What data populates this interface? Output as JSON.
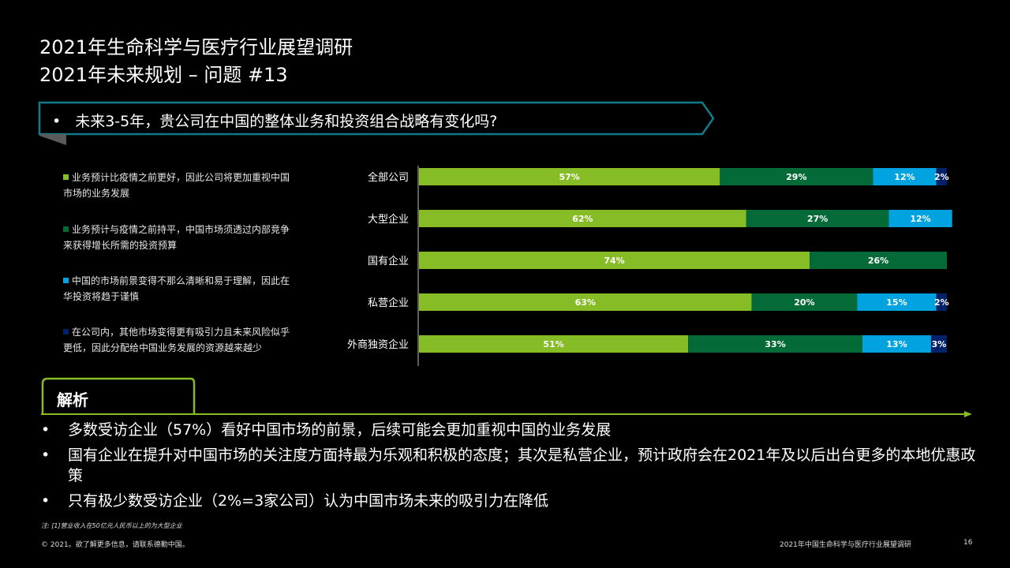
{
  "header": {
    "title_line1": "2021年生命科学与医疗行业展望调研",
    "title_line2": "2021年未来规划 – 问题 #13"
  },
  "question": {
    "bullet": "•",
    "text": "未来3-5年，贵公司在中国的整体业务和投资组合战略有变化吗?"
  },
  "colors": {
    "series1": "#86bc25",
    "series2": "#046a38",
    "series3": "#00a3e0",
    "series4": "#012169",
    "accent_teal": "#0f7c8c",
    "accent_green": "#86bc25"
  },
  "chart_data": {
    "type": "bar",
    "orientation": "horizontal",
    "stacked": true,
    "categories": [
      "全部公司",
      "大型企业",
      "国有企业",
      "私营企业",
      "外商独资企业"
    ],
    "series": [
      {
        "name": "业务预计比疫情之前更好，因此公司将更加重视中国市场的业务发展",
        "values": [
          57,
          62,
          74,
          63,
          51
        ],
        "labels": [
          "57%",
          "62%",
          "74%",
          "63%",
          "51%"
        ]
      },
      {
        "name": "业务预计与疫情之前持平，中国市场须透过内部竞争来获得增长所需的投资预算",
        "values": [
          29,
          27,
          26,
          20,
          33
        ],
        "labels": [
          "29%",
          "27%",
          "26%",
          "20%",
          "33%"
        ]
      },
      {
        "name": "中国的市场前景变得不那么清晰和易于理解，因此在华投资将趋于谨慎",
        "values": [
          12,
          12,
          0,
          15,
          13
        ],
        "labels": [
          "12%",
          "12%",
          "",
          "15%",
          "13%"
        ]
      },
      {
        "name": "在公司内，其他市场变得更有吸引力且未来风险似乎更低，因此分配给中国业务发展的资源越来越少",
        "values": [
          2,
          0,
          0,
          2,
          3
        ],
        "labels": [
          "2%",
          "",
          "",
          "2%",
          "3%"
        ]
      }
    ],
    "xlim": [
      0,
      100
    ]
  },
  "legend": {
    "items": [
      {
        "line1": "业务预计比疫情之前更好，因此公司将更加重视中国",
        "line2": "市场的业务发展"
      },
      {
        "line1": "业务预计与疫情之前持平，中国市场须透过内部竞争",
        "line2": "来获得增长所需的投资预算"
      },
      {
        "line1": "中国的市场前景变得不那么清晰和易于理解，因此在",
        "line2": "华投资将趋于谨慎"
      },
      {
        "line1": "在公司内，其他市场变得更有吸引力且未来风险似乎",
        "line2": "更低，因此分配给中国业务发展的资源越来越少"
      }
    ]
  },
  "analysis": {
    "label": "解析",
    "bullet": "•",
    "points": [
      "多数受访企业（57%）看好中国市场的前景，后续可能会更加重视中国的业务发展",
      "国有企业在提升对中国市场的关注度方面持最为乐观和积极的态度；其次是私营企业，预计政府会在2021年及以后出台更多的本地优惠政策",
      "只有极少数受访企业（2%=3家公司）认为中国市场未来的吸引力在降低"
    ]
  },
  "footer": {
    "note": "注: [1]营业收入在50亿元人民币以上的为大型企业",
    "copyright": "© 2021。欲了解更多信息，请联系德勤中国。",
    "report_title": "2021年中国生命科学与医疗行业展望调研",
    "page_number": "16"
  }
}
